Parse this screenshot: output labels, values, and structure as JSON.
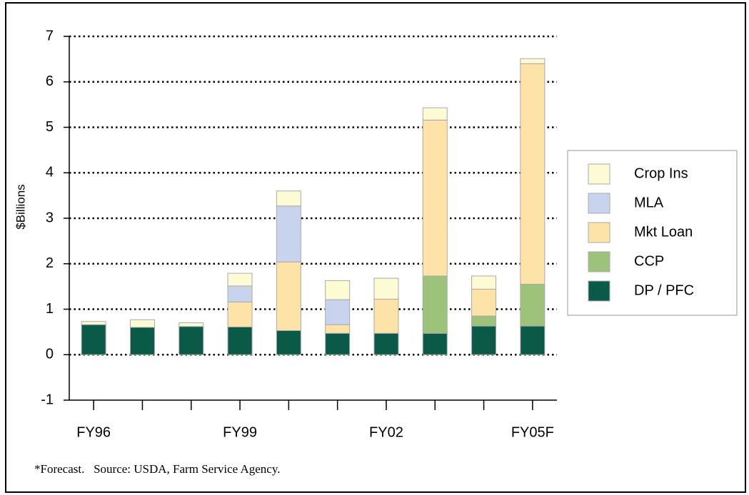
{
  "chart_data": {
    "type": "stacked_bar",
    "y_label": "$Billions",
    "note": "*Forecast.   Source: USDA, Farm Service Agency.",
    "categories": [
      "FY96",
      null,
      null,
      "FY99",
      null,
      null,
      "FY02",
      null,
      null,
      "FY05F"
    ],
    "series": [
      {
        "name": "DP / PFC",
        "color": "#0b5a47",
        "values": [
          0.66,
          0.6,
          0.62,
          0.61,
          0.53,
          0.47,
          0.47,
          0.47,
          0.63,
          0.63
        ]
      },
      {
        "name": "CCP",
        "color": "#9dc37a",
        "values": [
          0,
          0,
          0,
          0,
          0,
          0,
          0,
          1.26,
          0.22,
          0.92
        ]
      },
      {
        "name": "Mkt Loan",
        "color": "#fde3a7",
        "values": [
          0,
          0,
          0,
          0.55,
          1.51,
          0.19,
          0.75,
          3.43,
          0.59,
          4.85
        ]
      },
      {
        "name": "MLA",
        "color": "#c8d4ee",
        "values": [
          0,
          0,
          0,
          0.35,
          1.23,
          0.55,
          0,
          0,
          0,
          0
        ]
      },
      {
        "name": "Crop Ins",
        "color": "#fcfbd4",
        "values": [
          0.07,
          0.17,
          0.08,
          0.28,
          0.33,
          0.42,
          0.46,
          0.27,
          0.29,
          0.11
        ]
      }
    ],
    "ylim": [
      -1,
      7
    ],
    "yticks": [
      -1,
      0,
      1,
      2,
      3,
      4,
      5,
      6,
      7
    ],
    "grid": true,
    "legend": "right"
  }
}
